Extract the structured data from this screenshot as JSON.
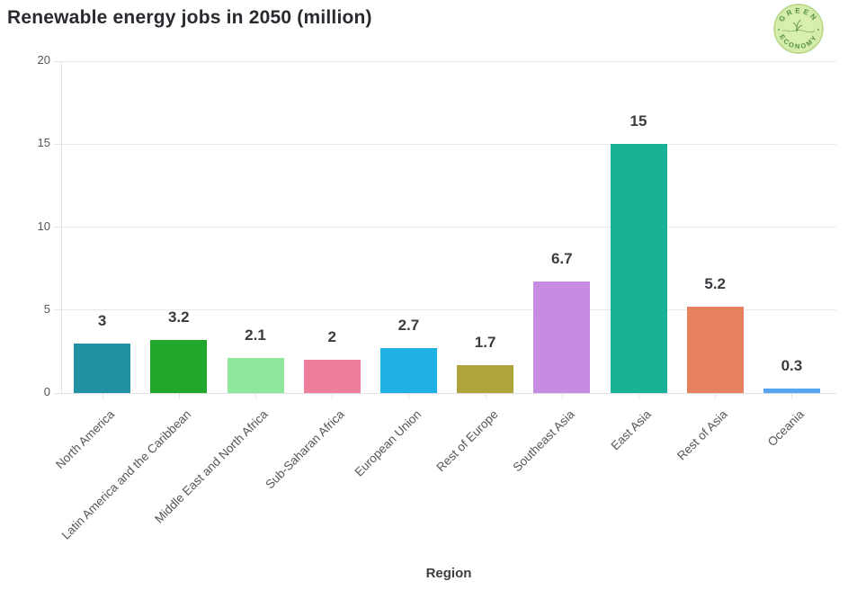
{
  "header": {
    "title": "Renewable energy jobs in 2050 (million)"
  },
  "logo": {
    "top_text": "GREEN",
    "bottom_text": "ECONOMY"
  },
  "chart_data": {
    "type": "bar",
    "title": "Renewable energy jobs in 2050 (million)",
    "xlabel": "Region",
    "ylabel": "",
    "ylim": [
      0,
      20
    ],
    "yticks": [
      0,
      5,
      10,
      15,
      20
    ],
    "grid": true,
    "legend": "none",
    "categories": [
      "North America",
      "Latin America and the Caribbean",
      "Middle East and North Africa",
      "Sub-Saharan Africa",
      "European Union",
      "Rest of Europe",
      "Southeast Asia",
      "East Asia",
      "Rest of Asia",
      "Oceania"
    ],
    "values": [
      3,
      3.2,
      2.1,
      2,
      2.7,
      1.7,
      6.7,
      15,
      5.2,
      0.3
    ],
    "value_labels": [
      "3",
      "3.2",
      "2.1",
      "2",
      "2.7",
      "1.7",
      "6.7",
      "15",
      "5.2",
      "0.3"
    ],
    "bar_colors": [
      "#2092a4",
      "#22a72b",
      "#8fe79b",
      "#ee7f9c",
      "#1fb1e4",
      "#afa43b",
      "#c68ce1",
      "#1ab296",
      "#e5815e",
      "#58a6f2"
    ]
  },
  "style": {
    "gridline_color": "#e9e9ec",
    "axis_color": "#e1e1e5",
    "tick_label_color": "#56555b",
    "value_label_color": "#3b3b40",
    "logo_bg": "#d5ecaa",
    "logo_ring": "#b5d687",
    "logo_text": "#55923c"
  }
}
